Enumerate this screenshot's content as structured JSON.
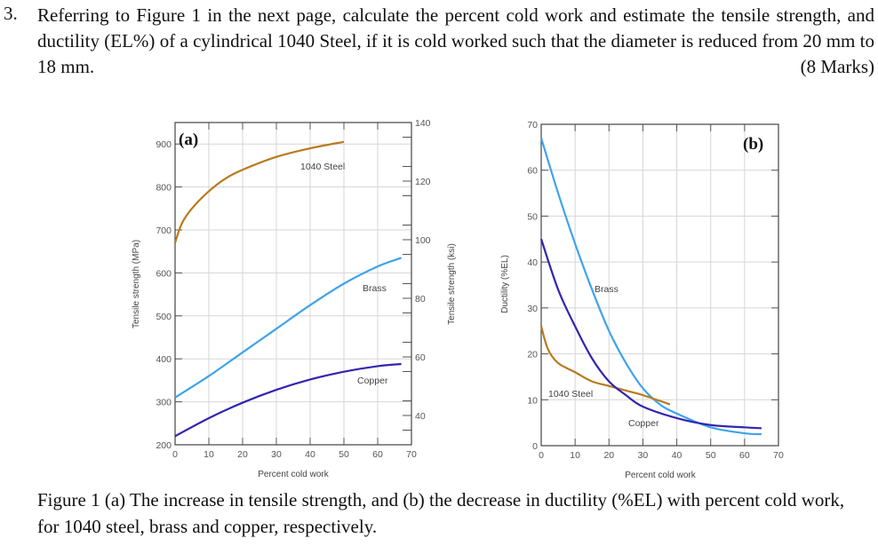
{
  "question": {
    "number": "3.",
    "text": "Referring to Figure 1 in the next page, calculate the percent cold work and estimate the tensile strength, and ductility (EL%) of a cylindrical 1040 Steel, if it is cold worked such that the diameter is reduced from 20 mm to 18 mm.",
    "marks": "(8 Marks)"
  },
  "caption": "Figure 1 (a) The increase in tensile strength, and (b) the decrease in ductility (%EL) with percent cold work, for 1040 steel, brass and copper, respectively.",
  "chart_data": [
    {
      "type": "line",
      "panel_label": "(a)",
      "xlabel": "Percent cold work",
      "ylabel": "Tensile strength (MPa)",
      "y2label": "Tensile strength (ksi)",
      "xlim": [
        0,
        70
      ],
      "ylim": [
        200,
        950
      ],
      "y2lim": [
        30,
        140
      ],
      "xticks": [
        0,
        10,
        20,
        30,
        40,
        50,
        60,
        70
      ],
      "yticks": [
        200,
        300,
        400,
        500,
        600,
        700,
        800,
        900
      ],
      "y2ticks": [
        40,
        60,
        80,
        100,
        120,
        140
      ],
      "grid": true,
      "series": [
        {
          "name": "1040 Steel",
          "color": "#b87a1e",
          "x": [
            0,
            2,
            5,
            10,
            15,
            20,
            30,
            40,
            50
          ],
          "y": [
            670,
            715,
            750,
            790,
            820,
            840,
            870,
            890,
            905
          ]
        },
        {
          "name": "Brass",
          "color": "#3fa3ea",
          "x": [
            0,
            10,
            20,
            30,
            40,
            50,
            60,
            67
          ],
          "y": [
            310,
            360,
            415,
            470,
            525,
            575,
            615,
            635
          ]
        },
        {
          "name": "Copper",
          "color": "#3225b0",
          "x": [
            0,
            10,
            20,
            30,
            40,
            50,
            60,
            67
          ],
          "y": [
            220,
            262,
            298,
            328,
            352,
            370,
            383,
            388
          ]
        }
      ]
    },
    {
      "type": "line",
      "panel_label": "(b)",
      "xlabel": "Percent cold work",
      "ylabel": "Ductility (%EL)",
      "xlim": [
        0,
        70
      ],
      "ylim": [
        0,
        70
      ],
      "xticks": [
        0,
        10,
        20,
        30,
        40,
        50,
        60,
        70
      ],
      "yticks": [
        0,
        10,
        20,
        30,
        40,
        50,
        60,
        70
      ],
      "grid": true,
      "series": [
        {
          "name": "Brass",
          "color": "#3fa3ea",
          "x": [
            0,
            5,
            10,
            15,
            20,
            25,
            30,
            35,
            40,
            50,
            60,
            65
          ],
          "y": [
            67,
            55,
            44,
            34,
            25,
            18,
            12.5,
            9,
            7,
            4,
            2.7,
            2.5
          ]
        },
        {
          "name": "1040 Steel",
          "color": "#b87a1e",
          "x": [
            0,
            2,
            5,
            10,
            15,
            20,
            25,
            30,
            38
          ],
          "y": [
            26,
            21,
            18,
            16,
            14,
            13,
            12,
            11,
            9
          ]
        },
        {
          "name": "Copper",
          "color": "#3225b0",
          "x": [
            0,
            5,
            10,
            15,
            20,
            25,
            30,
            40,
            50,
            60,
            65
          ],
          "y": [
            45,
            34,
            26,
            19,
            14,
            11,
            8.5,
            6,
            4.5,
            4,
            3.8
          ]
        }
      ]
    }
  ]
}
